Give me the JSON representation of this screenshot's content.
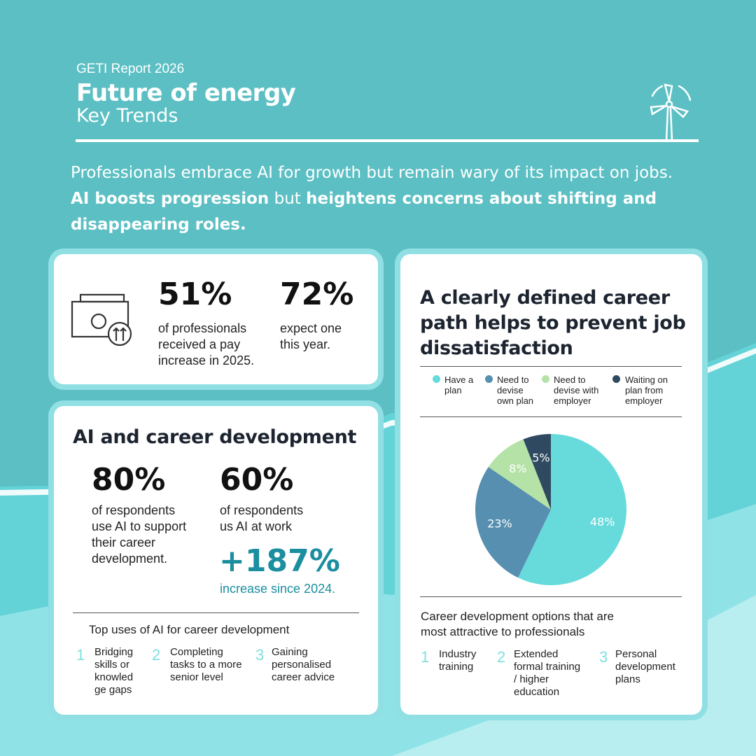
{
  "header": {
    "report": "GETI Report 2026",
    "title": "Future of energy",
    "subtitle": "Key Trends"
  },
  "intro": {
    "line1": "Professionals embrace AI for growth but remain wary of its impact on jobs.",
    "bold1": "AI boosts progression",
    "mid": " but ",
    "bold2": "heightens concerns about shifting and disappearing roles."
  },
  "pay": {
    "stat1_value": "51%",
    "stat1_l1": "of professionals",
    "stat1_l2": "received a pay",
    "stat1_l3": "increase in 2025.",
    "stat2_value": "72%",
    "stat2_l1": "expect one",
    "stat2_l2": "this year."
  },
  "ai": {
    "title": "AI and career development",
    "stat1_value": "80%",
    "stat1_l1": "of respondents",
    "stat1_l2": "use AI to support",
    "stat1_l3": "their career",
    "stat1_l4": "development.",
    "stat2_value": "60%",
    "stat2_l1": "of respondents",
    "stat2_l2": "us AI at work",
    "growth_value": "+187%",
    "growth_label": "increase since 2024.",
    "uses_title": "Top uses of AI for career development",
    "uses": [
      {
        "n": "1",
        "l1": "Bridging",
        "l2": "skills or",
        "l3": "knowled",
        "l4": "ge gaps"
      },
      {
        "n": "2",
        "l1": "Completing",
        "l2": "tasks to a more",
        "l3": "senior level"
      },
      {
        "n": "3",
        "l1": "Gaining",
        "l2": "personalised",
        "l3": "career advice"
      }
    ]
  },
  "career": {
    "title_l1": "A clearly defined career",
    "title_l2": "path helps to prevent job",
    "title_l3": "dissatisfaction",
    "legend": [
      {
        "l1": "Have a",
        "l2": "plan",
        "color": "#67dbdc"
      },
      {
        "l1": "Need to",
        "l2": "devise",
        "l3": "own plan",
        "color": "#578fb0"
      },
      {
        "l1": "Need to",
        "l2": "devise with",
        "l3": "employer",
        "color": "#b5e2a7"
      },
      {
        "l1": "Waiting on",
        "l2": "plan from",
        "l3": "employer",
        "color": "#2f4a60"
      }
    ],
    "options_title_l1": "Career development options that are",
    "options_title_l2": "most attractive to professionals",
    "options": [
      {
        "n": "1",
        "l1": "Industry",
        "l2": "training"
      },
      {
        "n": "2",
        "l1": "Extended",
        "l2": "formal training",
        "l3": "/ higher",
        "l4": "education"
      },
      {
        "n": "3",
        "l1": "Personal",
        "l2": "development",
        "l3": "plans"
      }
    ]
  },
  "chart_data": {
    "type": "pie",
    "title": "A clearly defined career path helps to prevent job dissatisfaction",
    "categories": [
      "Have a plan",
      "Need to devise own plan",
      "Need to devise with employer",
      "Waiting on plan from employer"
    ],
    "values": [
      48,
      23,
      8,
      5
    ],
    "labels": [
      "48%",
      "23%",
      "8%",
      "5%"
    ],
    "colors": [
      "#67dbdc",
      "#578fb0",
      "#b5e2a7",
      "#2f4a60"
    ],
    "legend": "top"
  }
}
